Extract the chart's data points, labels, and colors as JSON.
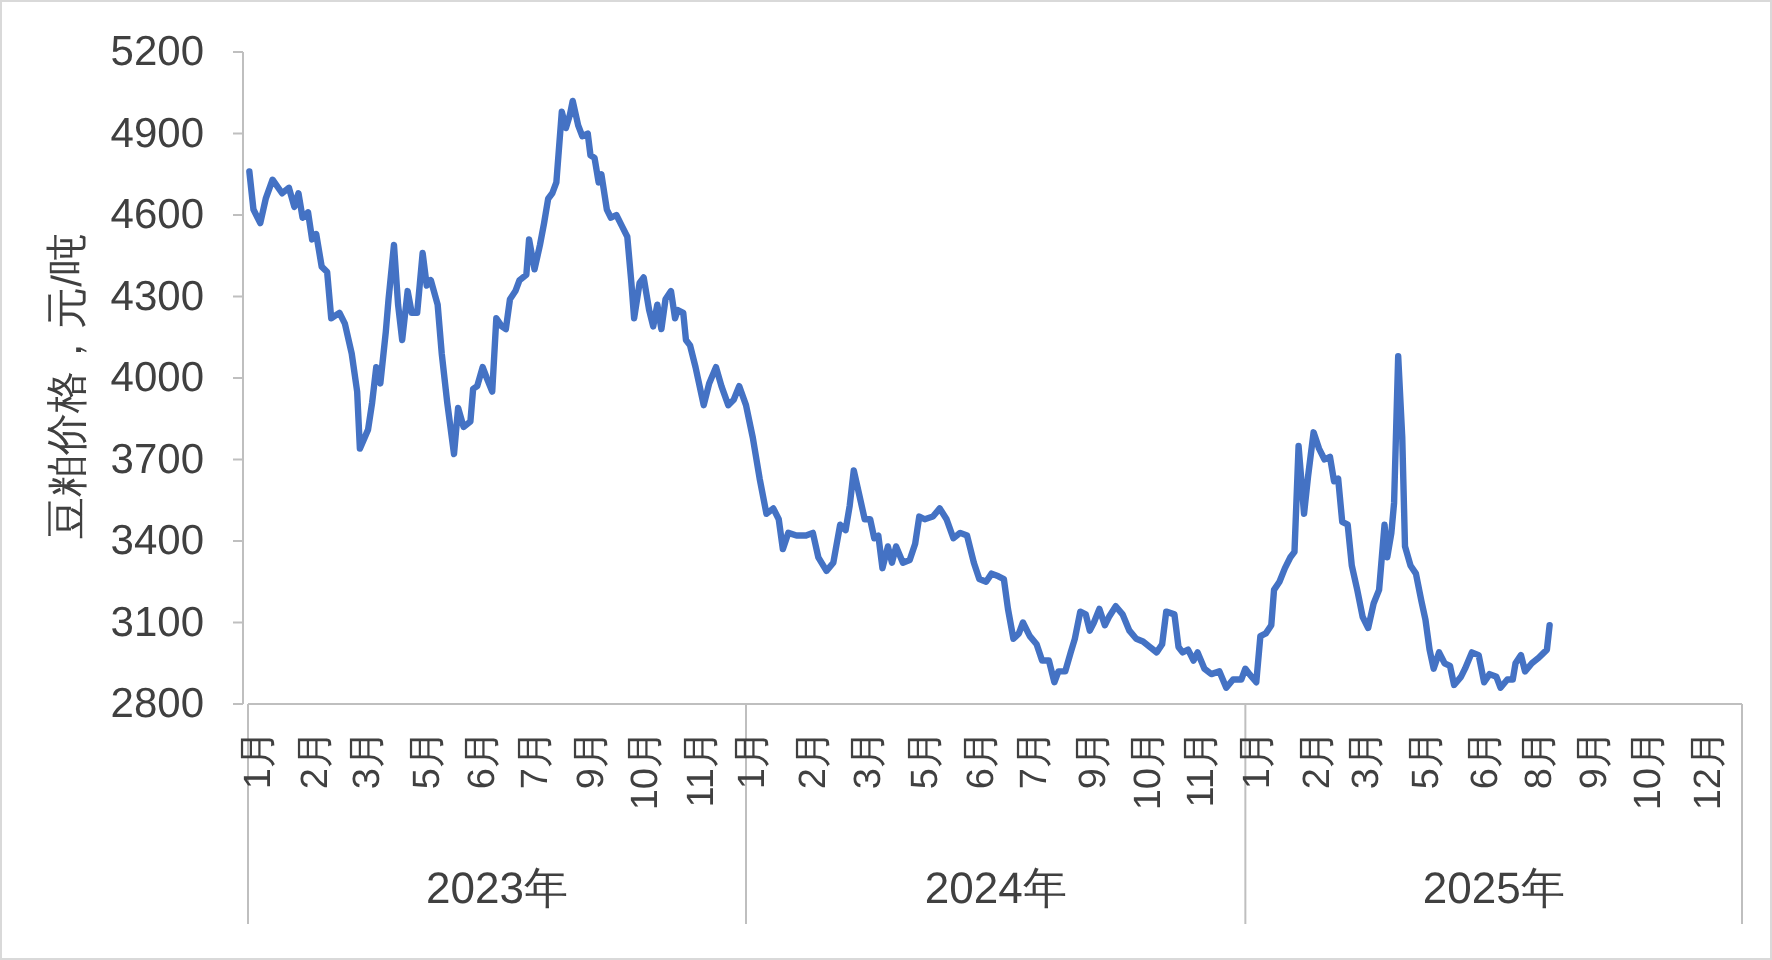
{
  "chart_data": {
    "type": "line",
    "ylabel": "豆粕价格，元/吨",
    "x": [
      "2023-01-02",
      "2023-01-05",
      "2023-01-10",
      "2023-01-14",
      "2023-01-19",
      "2023-01-26",
      "2023-01-31",
      "2023-02-04",
      "2023-02-07",
      "2023-02-10",
      "2023-02-14",
      "2023-02-17",
      "2023-02-20",
      "2023-02-24",
      "2023-02-28",
      "2023-03-03",
      "2023-03-09",
      "2023-03-13",
      "2023-03-18",
      "2023-03-22",
      "2023-03-24",
      "2023-03-30",
      "2023-04-02",
      "2023-04-05",
      "2023-04-08",
      "2023-04-12",
      "2023-04-14",
      "2023-04-18",
      "2023-04-21",
      "2023-04-24",
      "2023-04-28",
      "2023-05-01",
      "2023-05-05",
      "2023-05-09",
      "2023-05-12",
      "2023-05-15",
      "2023-05-20",
      "2023-05-23",
      "2023-05-27",
      "2023-06-01",
      "2023-06-04",
      "2023-06-08",
      "2023-06-13",
      "2023-06-15",
      "2023-06-18",
      "2023-06-22",
      "2023-06-25",
      "2023-06-29",
      "2023-07-02",
      "2023-07-06",
      "2023-07-09",
      "2023-07-12",
      "2023-07-16",
      "2023-07-19",
      "2023-07-24",
      "2023-07-26",
      "2023-07-30",
      "2023-08-03",
      "2023-08-06",
      "2023-08-09",
      "2023-08-12",
      "2023-08-15",
      "2023-08-19",
      "2023-08-22",
      "2023-08-25",
      "2023-08-27",
      "2023-08-31",
      "2023-09-03",
      "2023-09-07",
      "2023-09-09",
      "2023-09-12",
      "2023-09-15",
      "2023-09-17",
      "2023-09-21",
      "2023-09-24",
      "2023-09-28",
      "2023-10-02",
      "2023-10-06",
      "2023-10-09",
      "2023-10-11",
      "2023-10-15",
      "2023-10-18",
      "2023-10-22",
      "2023-10-25",
      "2023-10-28",
      "2023-10-31",
      "2023-11-03",
      "2023-11-07",
      "2023-11-10",
      "2023-11-12",
      "2023-11-16",
      "2023-11-18",
      "2023-11-21",
      "2023-11-25",
      "2023-11-28",
      "2023-12-01",
      "2023-12-05",
      "2023-12-10",
      "2023-12-14",
      "2023-12-19",
      "2023-12-23",
      "2023-12-27",
      "2024-01-01",
      "2024-01-06",
      "2024-01-11",
      "2024-01-16",
      "2024-01-21",
      "2024-01-25",
      "2024-01-28",
      "2024-02-01",
      "2024-02-07",
      "2024-02-14",
      "2024-02-19",
      "2024-02-23",
      "2024-02-29",
      "2024-03-05",
      "2024-03-10",
      "2024-03-14",
      "2024-03-17",
      "2024-03-20",
      "2024-03-24",
      "2024-03-28",
      "2024-04-01",
      "2024-04-04",
      "2024-04-07",
      "2024-04-10",
      "2024-04-14",
      "2024-04-17",
      "2024-04-20",
      "2024-04-25",
      "2024-04-30",
      "2024-05-04",
      "2024-05-07",
      "2024-05-11",
      "2024-05-17",
      "2024-05-22",
      "2024-05-27",
      "2024-06-01",
      "2024-06-06",
      "2024-06-11",
      "2024-06-16",
      "2024-06-20",
      "2024-06-25",
      "2024-06-29",
      "2024-07-04",
      "2024-07-08",
      "2024-07-11",
      "2024-07-15",
      "2024-07-19",
      "2024-07-22",
      "2024-07-27",
      "2024-08-01",
      "2024-08-05",
      "2024-08-10",
      "2024-08-14",
      "2024-08-17",
      "2024-08-22",
      "2024-08-26",
      "2024-08-29",
      "2024-09-02",
      "2024-09-06",
      "2024-09-09",
      "2024-09-12",
      "2024-09-16",
      "2024-09-20",
      "2024-09-23",
      "2024-09-28",
      "2024-10-03",
      "2024-10-08",
      "2024-10-13",
      "2024-10-18",
      "2024-10-23",
      "2024-10-28",
      "2024-11-01",
      "2024-11-04",
      "2024-11-10",
      "2024-11-13",
      "2024-11-16",
      "2024-11-20",
      "2024-11-24",
      "2024-11-27",
      "2024-12-02",
      "2024-12-07",
      "2024-12-13",
      "2024-12-18",
      "2024-12-23",
      "2024-12-29",
      "2025-01-01",
      "2025-01-04",
      "2025-01-09",
      "2025-01-12",
      "2025-01-16",
      "2025-01-20",
      "2025-01-22",
      "2025-01-26",
      "2025-01-30",
      "2025-02-03",
      "2025-02-06",
      "2025-02-09",
      "2025-02-13",
      "2025-02-16",
      "2025-02-20",
      "2025-02-24",
      "2025-02-28",
      "2025-03-04",
      "2025-03-07",
      "2025-03-10",
      "2025-03-13",
      "2025-03-17",
      "2025-03-20",
      "2025-03-24",
      "2025-03-28",
      "2025-04-01",
      "2025-04-05",
      "2025-04-09",
      "2025-04-13",
      "2025-04-15",
      "2025-04-18",
      "2025-04-20",
      "2025-04-23",
      "2025-04-26",
      "2025-04-28",
      "2025-05-02",
      "2025-05-06",
      "2025-05-10",
      "2025-05-13",
      "2025-05-16",
      "2025-05-19",
      "2025-05-23",
      "2025-05-27",
      "2025-05-31",
      "2025-06-03",
      "2025-06-08",
      "2025-06-11",
      "2025-06-16",
      "2025-06-21",
      "2025-06-25",
      "2025-06-29",
      "2025-07-04",
      "2025-07-07",
      "2025-07-12",
      "2025-07-16",
      "2025-07-18",
      "2025-07-22",
      "2025-07-25",
      "2025-07-30",
      "2025-08-04",
      "2025-08-08",
      "2025-08-10",
      "2025-08-12"
    ],
    "series": [
      {
        "color": "#4472c4",
        "values": [
          4760,
          4620,
          4570,
          4660,
          4730,
          4680,
          4700,
          4630,
          4680,
          4590,
          4610,
          4510,
          4530,
          4410,
          4390,
          4220,
          4240,
          4200,
          4090,
          3950,
          3740,
          3810,
          3910,
          4040,
          3980,
          4170,
          4290,
          4490,
          4270,
          4140,
          4320,
          4240,
          4240,
          4460,
          4340,
          4360,
          4270,
          4090,
          3910,
          3720,
          3890,
          3820,
          3840,
          3960,
          3970,
          4040,
          4000,
          3950,
          4220,
          4190,
          4180,
          4290,
          4320,
          4360,
          4380,
          4510,
          4400,
          4490,
          4570,
          4660,
          4680,
          4720,
          4980,
          4920,
          4970,
          5020,
          4930,
          4890,
          4900,
          4820,
          4810,
          4720,
          4750,
          4620,
          4590,
          4600,
          4560,
          4520,
          4350,
          4220,
          4350,
          4370,
          4250,
          4190,
          4270,
          4180,
          4290,
          4320,
          4220,
          4250,
          4240,
          4140,
          4120,
          4040,
          3970,
          3900,
          3980,
          4040,
          3970,
          3900,
          3920,
          3970,
          3900,
          3780,
          3630,
          3500,
          3520,
          3480,
          3370,
          3430,
          3420,
          3420,
          3430,
          3340,
          3290,
          3320,
          3460,
          3440,
          3530,
          3660,
          3570,
          3480,
          3480,
          3410,
          3420,
          3300,
          3380,
          3320,
          3380,
          3320,
          3330,
          3390,
          3490,
          3480,
          3490,
          3520,
          3480,
          3410,
          3430,
          3420,
          3320,
          3260,
          3250,
          3280,
          3270,
          3260,
          3150,
          3040,
          3060,
          3100,
          3050,
          3020,
          2960,
          2960,
          2880,
          2920,
          2920,
          2990,
          3040,
          3140,
          3130,
          3070,
          3100,
          3150,
          3090,
          3120,
          3160,
          3130,
          3070,
          3040,
          3030,
          3010,
          2990,
          3020,
          3140,
          3130,
          3010,
          2990,
          3000,
          2960,
          2990,
          2930,
          2910,
          2920,
          2860,
          2890,
          2890,
          2930,
          2910,
          2880,
          3050,
          3060,
          3090,
          3220,
          3250,
          3300,
          3340,
          3360,
          3750,
          3500,
          3640,
          3800,
          3740,
          3700,
          3710,
          3620,
          3630,
          3470,
          3460,
          3310,
          3220,
          3120,
          3080,
          3170,
          3220,
          3460,
          3340,
          3430,
          3540,
          4080,
          3780,
          3380,
          3310,
          3280,
          3180,
          3110,
          3000,
          2930,
          2990,
          2950,
          2940,
          2870,
          2900,
          2930,
          2990,
          2980,
          2880,
          2910,
          2900,
          2860,
          2890,
          2890,
          2950,
          2980,
          2920,
          2950,
          2970,
          2990,
          3000,
          3090
        ]
      }
    ],
    "xlim": [
      "2023-01-01",
      "2025-12-31"
    ],
    "xticks": [
      {
        "value": "2023-01-09",
        "label": "1月"
      },
      {
        "value": "2023-02-20",
        "label": "2月"
      },
      {
        "value": "2023-03-30",
        "label": "3月"
      },
      {
        "value": "2023-05-13",
        "label": "5月"
      },
      {
        "value": "2023-06-22",
        "label": "6月"
      },
      {
        "value": "2023-07-31",
        "label": "7月"
      },
      {
        "value": "2023-09-10",
        "label": "9月"
      },
      {
        "value": "2023-10-20",
        "label": "10月"
      },
      {
        "value": "2023-11-30",
        "label": "11月"
      },
      {
        "value": "2024-01-06",
        "label": "1月"
      },
      {
        "value": "2024-02-20",
        "label": "2月"
      },
      {
        "value": "2024-03-31",
        "label": "3月"
      },
      {
        "value": "2024-05-12",
        "label": "5月"
      },
      {
        "value": "2024-06-22",
        "label": "6月"
      },
      {
        "value": "2024-07-31",
        "label": "7月"
      },
      {
        "value": "2024-09-12",
        "label": "9月"
      },
      {
        "value": "2024-10-22",
        "label": "10月"
      },
      {
        "value": "2024-11-30",
        "label": "11月"
      },
      {
        "value": "2025-01-10",
        "label": "1月"
      },
      {
        "value": "2025-02-23",
        "label": "2月"
      },
      {
        "value": "2025-03-31",
        "label": "3月"
      },
      {
        "value": "2025-05-14",
        "label": "5月"
      },
      {
        "value": "2025-06-26",
        "label": "6月"
      },
      {
        "value": "2025-08-05",
        "label": "8月"
      },
      {
        "value": "2025-09-14",
        "label": "9月"
      },
      {
        "value": "2025-10-24",
        "label": "10月"
      },
      {
        "value": "2025-12-07",
        "label": "12月"
      }
    ],
    "ylim": [
      2800,
      5200
    ],
    "yticks": [
      2800,
      3100,
      3400,
      3700,
      4000,
      4300,
      4600,
      4900,
      5200
    ],
    "annotations": [
      "2023年",
      "2024年",
      "2025年"
    ]
  }
}
